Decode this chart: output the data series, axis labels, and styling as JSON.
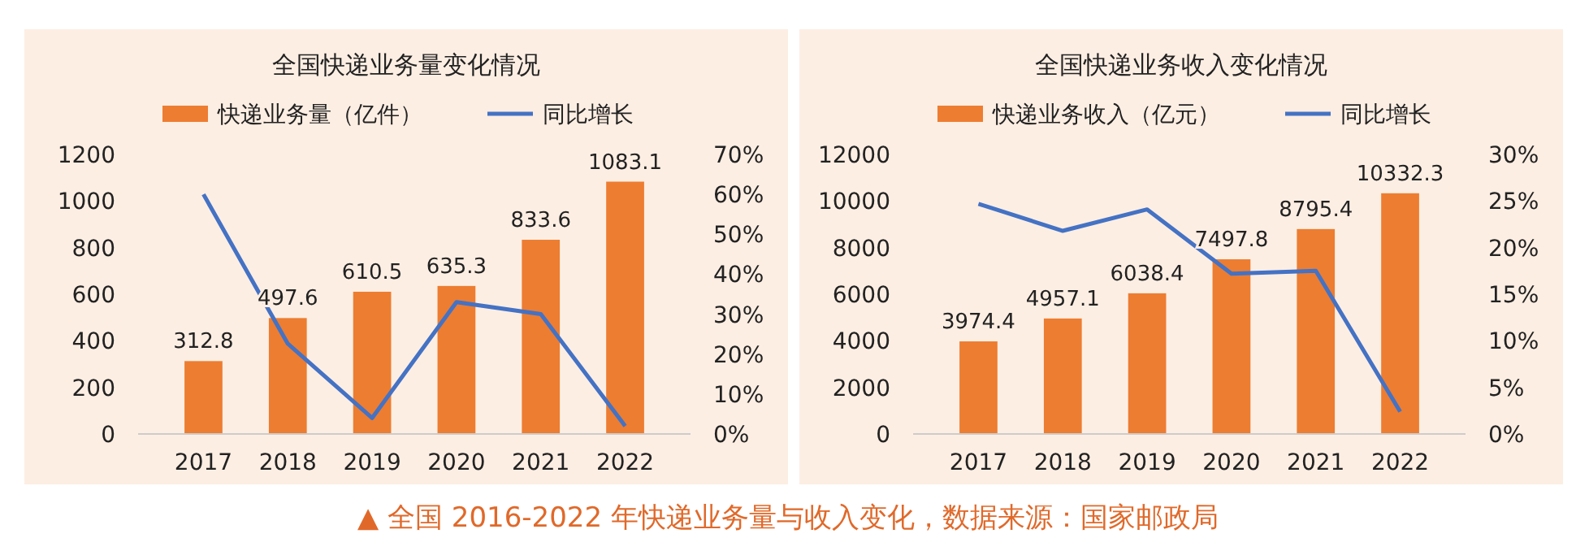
{
  "chart_data": [
    {
      "type": "bar",
      "title": "全国快递业务量变化情况",
      "categories": [
        "2017",
        "2018",
        "2019",
        "2020",
        "2021",
        "2022"
      ],
      "series": [
        {
          "name": "快递业务量（亿件）",
          "color": "#ed7d31",
          "values": [
            312.8,
            497.6,
            610.5,
            635.3,
            833.6,
            1083.1
          ]
        },
        {
          "name": "同比增长",
          "type": "line",
          "axis": "y2",
          "color": "#4472c4",
          "values": [
            60,
            22.6,
            4,
            33,
            30,
            2
          ]
        }
      ],
      "ylim": [
        0,
        1200
      ],
      "yticks": [
        0,
        200,
        400,
        600,
        800,
        1000,
        1200
      ],
      "y2lim": [
        0,
        70
      ],
      "y2ticks": [
        {
          "value": 0,
          "label": "0%"
        },
        {
          "value": 10,
          "label": "10%"
        },
        {
          "value": 20,
          "label": "20%"
        },
        {
          "value": 30,
          "label": "30%"
        },
        {
          "value": 40,
          "label": "40%"
        },
        {
          "value": 50,
          "label": "50%"
        },
        {
          "value": 60,
          "label": "60%"
        },
        {
          "value": 70,
          "label": "70%"
        }
      ],
      "value_labels": [
        "312.8",
        "497.6",
        "610.5",
        "635.3",
        "833.6",
        "1083.1"
      ],
      "legend": "top",
      "grid": false,
      "marker": "none",
      "annotations": [
        "▲ 全国 2016-2022 年快递业务量与收入变化，数据来源：国家邮政局"
      ]
    },
    {
      "type": "bar",
      "title": "全国快递业务收入变化情况",
      "categories": [
        "2017",
        "2018",
        "2019",
        "2020",
        "2021",
        "2022"
      ],
      "series": [
        {
          "name": "快递业务收入（亿元）",
          "color": "#ed7d31",
          "values": [
            3974.4,
            4957.1,
            6038.4,
            7497.8,
            8795.4,
            10332.3
          ]
        },
        {
          "name": "同比增长",
          "type": "line",
          "axis": "y2",
          "color": "#4472c4",
          "values": [
            24.7,
            21.8,
            24.1,
            17.2,
            17.5,
            2.4
          ]
        }
      ],
      "ylim": [
        0,
        12000
      ],
      "yticks": [
        0,
        2000,
        4000,
        6000,
        8000,
        10000,
        12000
      ],
      "y2lim": [
        0,
        30
      ],
      "y2ticks": [
        {
          "value": 0,
          "label": "0%"
        },
        {
          "value": 5,
          "label": "5%"
        },
        {
          "value": 10,
          "label": "10%"
        },
        {
          "value": 15,
          "label": "15%"
        },
        {
          "value": 20,
          "label": "20%"
        },
        {
          "value": 25,
          "label": "25%"
        },
        {
          "value": 30,
          "label": "30%"
        }
      ],
      "value_labels": [
        "3974.4",
        "4957.1",
        "6038.4",
        "7497.8",
        "8795.4",
        "10332.3"
      ],
      "legend": "top",
      "grid": false,
      "marker": "none"
    }
  ]
}
